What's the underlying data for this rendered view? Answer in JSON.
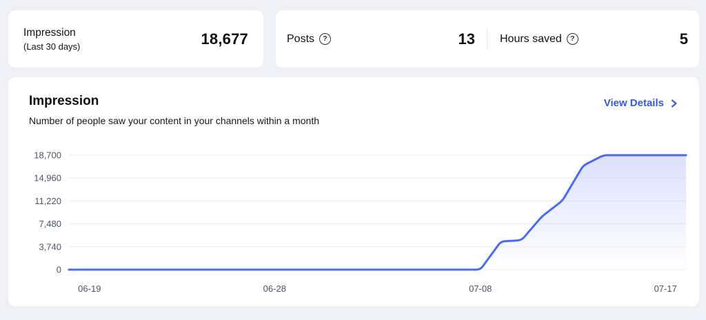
{
  "colors": {
    "page_background": "#eef0f6",
    "card_background": "#ffffff",
    "accent_line_blue": "#4a69f2",
    "link_blue": "#3657e0",
    "axis_label": "#4b5468",
    "gridline": "#ececf1"
  },
  "icons": {
    "help_glyph": "?"
  },
  "summary": {
    "impression": {
      "title": "Impression",
      "period": "(Last 30 days)",
      "value": "18,677"
    },
    "posts": {
      "label": "Posts",
      "value": "13"
    },
    "hours_saved": {
      "label": "Hours saved",
      "value": "5"
    }
  },
  "main_card": {
    "title": "Impression",
    "description": "Number of people saw your content in your channels within a month",
    "view_details_label": "View Details"
  },
  "chart_data": {
    "type": "area",
    "title": "Impression",
    "x": [
      "06-18",
      "06-19",
      "06-20",
      "06-21",
      "06-22",
      "06-23",
      "06-24",
      "06-25",
      "06-26",
      "06-27",
      "06-28",
      "06-29",
      "06-30",
      "07-01",
      "07-02",
      "07-03",
      "07-04",
      "07-05",
      "07-06",
      "07-07",
      "07-08",
      "07-09",
      "07-10",
      "07-11",
      "07-12",
      "07-13",
      "07-14",
      "07-15",
      "07-16",
      "07-17",
      "07-18"
    ],
    "values": [
      0,
      0,
      0,
      0,
      0,
      0,
      0,
      0,
      0,
      0,
      0,
      0,
      0,
      0,
      0,
      0,
      0,
      0,
      0,
      0,
      0,
      4600,
      4800,
      8700,
      11300,
      17000,
      18700,
      18700,
      18700,
      18700,
      18700
    ],
    "ylim": [
      0,
      18700
    ],
    "yticks": [
      0,
      3740,
      7480,
      11220,
      14960,
      18700
    ],
    "ytick_labels": [
      "0",
      "3,740",
      "7,480",
      "11,220",
      "14,960",
      "18,700"
    ],
    "xtick_labels": [
      "06-19",
      "06-28",
      "07-08",
      "07-17"
    ],
    "xtick_indices": [
      1,
      10,
      20,
      29
    ],
    "grid": "horizontal",
    "legend": "none",
    "line_color": "#4a69f2",
    "area_fill_top": "rgba(74,105,242,0.20)",
    "area_fill_bottom": "rgba(74,105,242,0)"
  }
}
